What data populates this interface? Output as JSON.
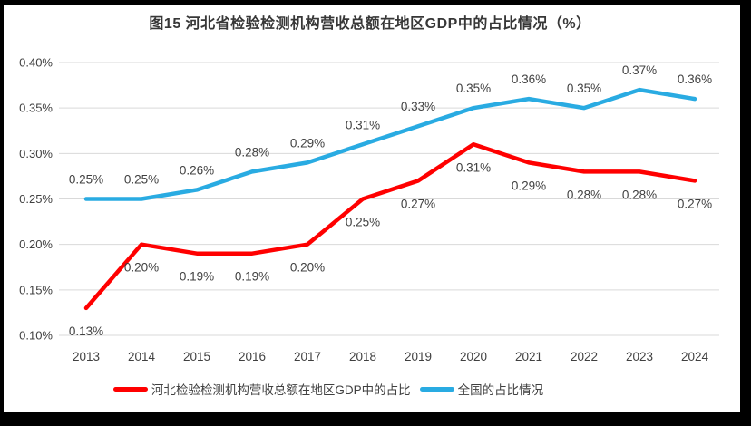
{
  "window": {
    "background": "#ffffff",
    "frame_color": "#000000"
  },
  "chart_data": {
    "type": "line",
    "title": "图15 河北省检验检测机构营收总额在地区GDP中的占比情况（%）",
    "unit": "%",
    "categories": [
      "2013",
      "2014",
      "2015",
      "2016",
      "2017",
      "2018",
      "2019",
      "2020",
      "2021",
      "2022",
      "2023",
      "2024"
    ],
    "series": [
      {
        "name": "河北检验检测机构营收总额在地区GDP中的占比",
        "color": "#ff0000",
        "values": [
          0.13,
          0.2,
          0.19,
          0.19,
          0.2,
          0.25,
          0.27,
          0.31,
          0.29,
          0.28,
          0.28,
          0.27
        ],
        "data_labels": [
          "0.13%",
          "0.20%",
          "0.19%",
          "0.19%",
          "0.20%",
          "0.25%",
          "0.27%",
          "0.31%",
          "0.29%",
          "0.28%",
          "0.28%",
          "0.27%"
        ],
        "data_label_position": "below"
      },
      {
        "name": "全国的占比情况",
        "color": "#29abe2",
        "values": [
          0.25,
          0.25,
          0.26,
          0.28,
          0.29,
          0.31,
          0.33,
          0.35,
          0.36,
          0.35,
          0.37,
          0.36
        ],
        "data_labels": [
          "0.25%",
          "0.25%",
          "0.26%",
          "0.28%",
          "0.29%",
          "0.31%",
          "0.33%",
          "0.35%",
          "0.36%",
          "0.35%",
          "0.37%",
          "0.36%"
        ],
        "data_label_position": "above"
      }
    ],
    "ylim": [
      0.1,
      0.4
    ],
    "ytick_step": 0.05,
    "ytick_labels": [
      "0.10%",
      "0.15%",
      "0.20%",
      "0.25%",
      "0.30%",
      "0.35%",
      "0.40%"
    ],
    "grid": true,
    "grid_color": "#d9d9d9",
    "axis_text_color": "#404040",
    "data_label_color": "#404040",
    "legend_position": "bottom"
  }
}
